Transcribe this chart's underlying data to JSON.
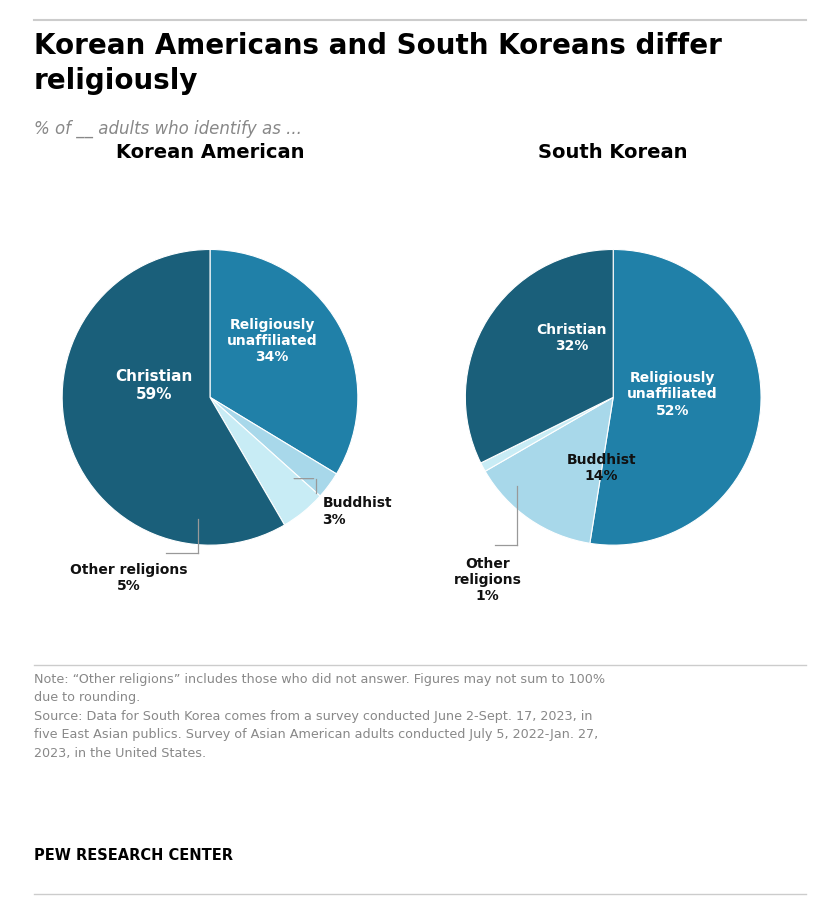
{
  "title": "Korean Americans and South Koreans differ\nreligiously",
  "subtitle": "% of __ adults who identify as ...",
  "pie1_title": "Korean American",
  "pie2_title": "South Korean",
  "pie1_colors": [
    "#2080a8",
    "#a8d8ea",
    "#c8ecf5",
    "#1a5f7a"
  ],
  "pie1_values": [
    34,
    3,
    5,
    59
  ],
  "pie2_colors": [
    "#2080a8",
    "#a8d8ea",
    "#c8ecf5",
    "#1a5f7a"
  ],
  "pie2_values": [
    52,
    14,
    1,
    32
  ],
  "note_text": "Note: “Other religions” includes those who did not answer. Figures may not sum to 100%\ndue to rounding.\nSource: Data for South Korea comes from a survey conducted June 2-Sept. 17, 2023, in\nfive East Asian publics. Survey of Asian American adults conducted July 5, 2022-Jan. 27,\n2023, in the United States.",
  "source_bold": "PEW RESEARCH CENTER",
  "bg_color": "#ffffff"
}
